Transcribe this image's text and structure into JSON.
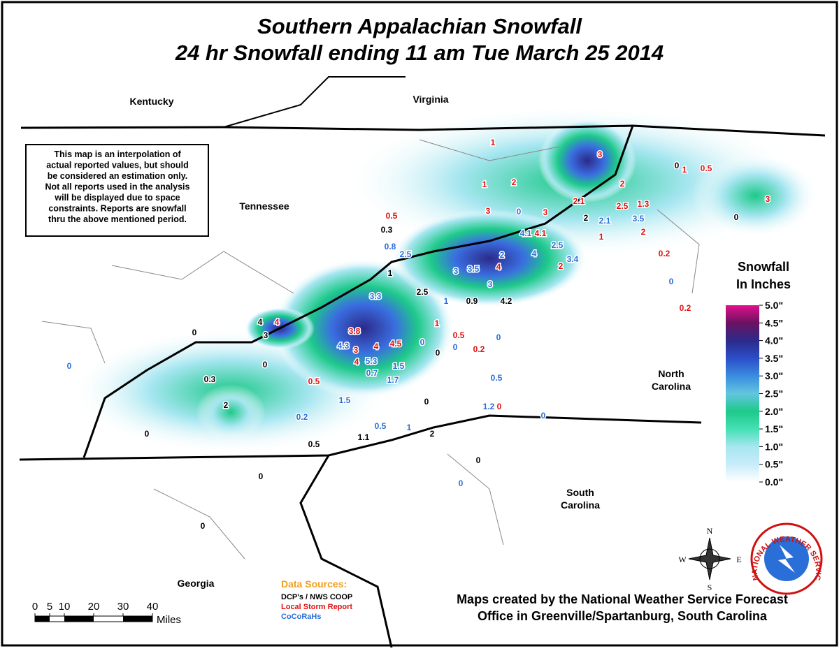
{
  "header": {
    "title_lines": [
      "Southern Appalachian Snowfall",
      "24 hr Snowfall ending 11 am Tue March 25 2014"
    ]
  },
  "states": [
    {
      "lines": [
        "Kentucky"
      ]
    },
    {
      "lines": [
        "Virginia"
      ]
    },
    {
      "lines": [
        "Tennessee"
      ]
    },
    {
      "lines": [
        "North",
        "Carolina"
      ]
    },
    {
      "lines": [
        "South",
        "Carolina"
      ]
    },
    {
      "lines": [
        "Georgia"
      ]
    }
  ],
  "disclaimer": {
    "lines": [
      "This map is an interpolation of",
      "actual reported values, but should",
      "be considered an estimation only.",
      "Not all reports used in the analysis",
      "will be displayed due to space",
      "constraints. Reports are snowfall",
      "thru the above mentioned period."
    ]
  },
  "legend": {
    "title_lines": [
      "Snowfall",
      "In Inches"
    ],
    "ticks": [
      {
        "value": 5,
        "label": "5.0\""
      },
      {
        "value": 4.5,
        "label": "4.5\""
      },
      {
        "value": 4,
        "label": "4.0\""
      },
      {
        "value": 3.5,
        "label": "3.5\""
      },
      {
        "value": 3,
        "label": "3.0\""
      },
      {
        "value": 2.5,
        "label": "2.5\""
      },
      {
        "value": 2,
        "label": "2.0\""
      },
      {
        "value": 1.5,
        "label": "1.5\""
      },
      {
        "value": 1,
        "label": "1.0\""
      },
      {
        "value": 0.5,
        "label": "0.5\""
      },
      {
        "value": 0,
        "label": "0.0\""
      }
    ],
    "colors": [
      "#ffffff",
      "#c8ecfa",
      "#a6e6f0",
      "#44e0b4",
      "#1ec98a",
      "#62c6e0",
      "#3a8ce0",
      "#2c4ec8",
      "#2c2a8a",
      "#6a1260",
      "#e0108c"
    ]
  },
  "data_sources": {
    "title": "Data Sources:",
    "sources": [
      {
        "name": "DCP's / NWS COOP",
        "color": "#000000",
        "values": [
          0,
          0.3,
          0,
          2,
          1,
          2.5,
          0.9,
          4.2,
          0,
          4,
          3,
          0,
          0,
          0.3,
          2,
          0,
          0,
          0.5,
          1.1,
          2,
          0,
          0,
          0
        ]
      },
      {
        "name": "Local Storm Report",
        "color": "#e01010",
        "values": [
          1,
          3,
          1,
          0.5,
          1,
          2,
          2,
          3,
          0.5,
          3,
          3,
          2.1,
          2.5,
          1.3,
          2,
          4.1,
          1,
          0.2,
          4,
          2,
          0.2,
          3.8,
          1,
          0.5,
          4,
          4.5,
          3,
          0.2,
          4,
          0.5,
          0,
          4
        ]
      },
      {
        "name": "CoCoRaHs",
        "color": "#2a6ed8",
        "values": [
          0,
          0.8,
          2.5,
          4.1,
          2.1,
          3.5,
          2,
          2.5,
          4,
          3.4,
          3,
          3.5,
          3,
          3.3,
          1,
          0,
          4.3,
          5.3,
          1.5,
          0.7,
          1.7,
          0,
          0,
          0,
          0.5,
          0,
          1.5,
          0.2,
          0.5,
          1,
          1.2,
          0,
          0
        ]
      }
    ]
  },
  "credit_lines": [
    "Maps created by the National Weather Service Forecast",
    "Office in Greenville/Spartanburg, South Carolina"
  ],
  "scale": {
    "ticks": [
      0,
      5,
      10,
      20,
      30,
      40
    ],
    "unit": "Miles"
  },
  "compass": {
    "n": "N",
    "e": "E",
    "s": "S",
    "w": "W"
  },
  "logo": {
    "text": "NATIONAL WEATHER SERVICE"
  }
}
